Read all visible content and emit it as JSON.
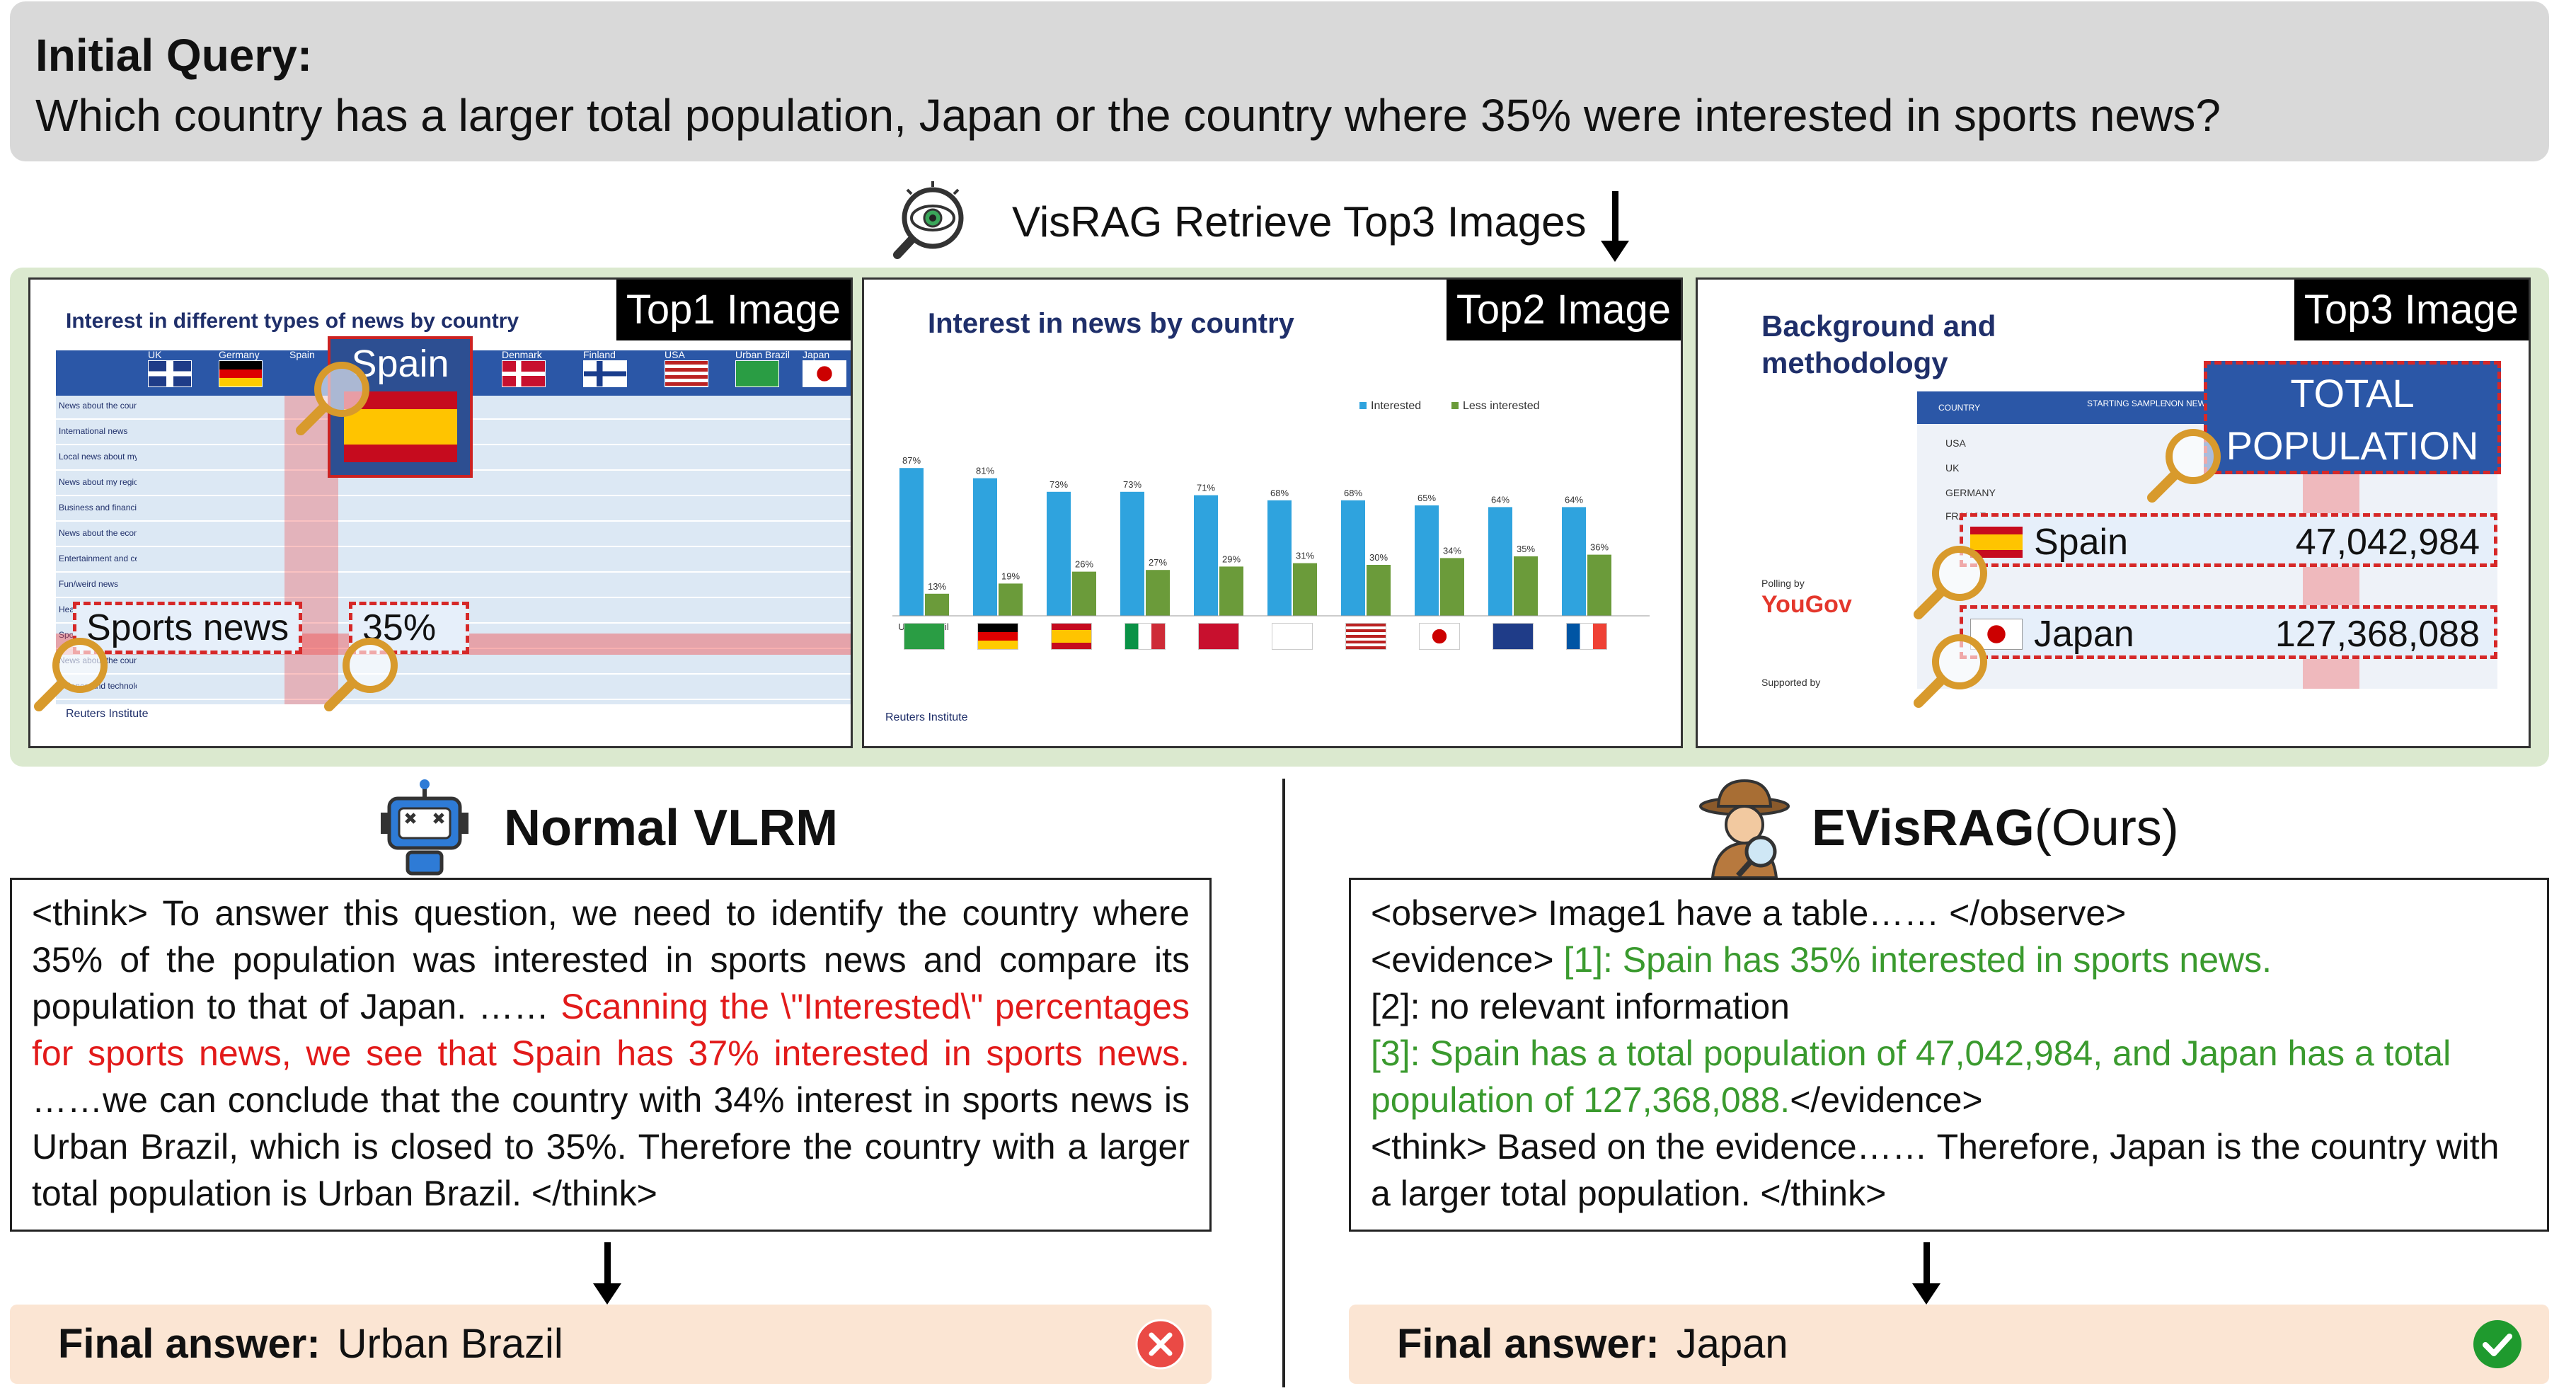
{
  "query": {
    "title": "Initial Query:",
    "text": "Which country has a larger total population, Japan or the country where 35% were interested in sports news?"
  },
  "retrieve": {
    "text": "VisRAG Retrieve Top3 Images",
    "icon": "eye-magnifier-icon"
  },
  "images": {
    "top1": {
      "label": "Top1 Image",
      "title": "Interest in different types of news by country",
      "columns": [
        "UK",
        "Germany",
        "Spain",
        "Denmark",
        "Finland",
        "USA",
        "Urban Brazil",
        "Japan"
      ],
      "rows": [
        "News about the country",
        "International news",
        "Local news about my town or city",
        "News about my region",
        "Business and financial news",
        "News about the economy",
        "Entertainment and celebrity news",
        "Fun/weird news",
        "Health and education news",
        "Sports news",
        "News about the country's politics",
        "Science and technology news"
      ],
      "callout_spain": "Spain",
      "callout_sports": "Sports news",
      "callout_pct": "35%",
      "footer": "Reuters Institute"
    },
    "top2": {
      "label": "Top2 Image",
      "title": "Interest in news by country",
      "legend": [
        "Interested",
        "Less interested"
      ],
      "footer": "Reuters Institute"
    },
    "top3": {
      "label": "Top3 Image",
      "title_line1": "Background and",
      "title_line2": "methodology",
      "callout": "TOTAL POPULATION",
      "row1_country": "Spain",
      "row1_value": "47,042,984",
      "row2_country": "Japan",
      "row2_value": "127,368,088",
      "polling_by": "Polling by",
      "pollster": "YouGov",
      "supported_by": "Supported by",
      "col_headers": [
        "COUNTRY",
        "STARTING SAMPLE",
        "NON NEWS USERS"
      ],
      "country_codes": [
        "USA",
        "UK",
        "GERMANY",
        "FRANCE"
      ]
    }
  },
  "chart_data": {
    "type": "bar",
    "title": "Interest in news by country",
    "categories": [
      "Urban Brazil",
      "Germany",
      "Spain",
      "Italy",
      "Denmark",
      "Finland",
      "USA",
      "Japan",
      "UK",
      "France"
    ],
    "series": [
      {
        "name": "Interested",
        "values": [
          87,
          81,
          73,
          73,
          71,
          68,
          68,
          65,
          64,
          64
        ]
      },
      {
        "name": "Less interested",
        "values": [
          13,
          19,
          26,
          27,
          29,
          31,
          30,
          34,
          35,
          36
        ]
      }
    ],
    "ylim": [
      0,
      100
    ],
    "colors": {
      "Interested": "#2fa3de",
      "Less interested": "#6b9b3a"
    }
  },
  "left": {
    "heading": "Normal VLRM",
    "text_pre": "<think> To answer this question, we need to identify the country where 35% of the population was interested in sports news and compare its population to that of Japan. …… ",
    "text_red": "Scanning the \\\"Interested\\\" percentages for sports news, we see that Spain has 37% interested in sports news.",
    "text_post": " ……we can conclude that the country with 34% interest in sports news is Urban Brazil, which is closed to 35%. Therefore the country with a larger total population is Urban Brazil. </think>",
    "answer_label": "Final answer:",
    "answer": "Urban Brazil",
    "status_icon": "error-x-icon"
  },
  "right": {
    "heading": "EVisRAG",
    "heading_suffix": "(Ours)",
    "line1": "<observe> Image1 have a table…… </observe>",
    "line2_pre": "<evidence> ",
    "line2_green": "[1]: Spain has 35% interested in sports news.",
    "line3": "[2]: no relevant information",
    "line4_green": "[3]: Spain has a total population of 47,042,984, and Japan has a total population of 127,368,088.",
    "line4_post": "</evidence>",
    "line5": "<think> Based on the evidence…… Therefore, Japan is the country with a larger total population. </think>",
    "answer_label": "Final answer:",
    "answer": "Japan",
    "status_icon": "check-icon"
  },
  "colors": {
    "red_text": "#e21a1a",
    "green_text": "#3a9a2e",
    "panel_green": "#dbe9cf",
    "answer_bg": "#fbe5d3"
  }
}
